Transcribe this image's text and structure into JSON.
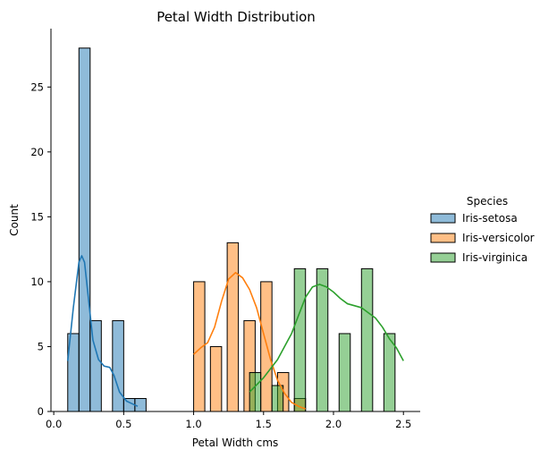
{
  "chart_data": {
    "type": "histogram",
    "title": "Petal Width Distribution",
    "xlabel": "Petal Width cms",
    "ylabel": "Count",
    "xlim": [
      -0.02,
      2.62
    ],
    "ylim": [
      0,
      29.5
    ],
    "xticks": [
      0.0,
      0.5,
      1.0,
      1.5,
      2.0,
      2.5
    ],
    "xtick_labels": [
      "0.0",
      "0.5",
      "1.0",
      "1.5",
      "2.0",
      "2.5"
    ],
    "yticks": [
      0,
      5,
      10,
      15,
      20,
      25
    ],
    "ytick_labels": [
      "0",
      "5",
      "10",
      "15",
      "20",
      "25"
    ],
    "bin_width": 0.08,
    "grid": false,
    "legend_title": "Species",
    "legend_position": "right",
    "series": [
      {
        "name": "Iris-setosa",
        "color": "#1f77b4",
        "bins": [
          {
            "x0": 0.1,
            "count": 6
          },
          {
            "x0": 0.18,
            "count": 28
          },
          {
            "x0": 0.26,
            "count": 7
          },
          {
            "x0": 0.42,
            "count": 7
          },
          {
            "x0": 0.5,
            "count": 1
          },
          {
            "x0": 0.58,
            "count": 1
          }
        ],
        "kde": [
          [
            0.1,
            3.9
          ],
          [
            0.14,
            8.0
          ],
          [
            0.18,
            11.5
          ],
          [
            0.2,
            12.0
          ],
          [
            0.22,
            11.5
          ],
          [
            0.25,
            8.5
          ],
          [
            0.28,
            5.5
          ],
          [
            0.32,
            4.0
          ],
          [
            0.36,
            3.5
          ],
          [
            0.4,
            3.4
          ],
          [
            0.43,
            2.8
          ],
          [
            0.47,
            1.5
          ],
          [
            0.52,
            0.8
          ],
          [
            0.56,
            0.6
          ],
          [
            0.6,
            0.4
          ]
        ]
      },
      {
        "name": "Iris-versicolor",
        "color": "#ff7f0e",
        "bins": [
          {
            "x0": 1.0,
            "count": 10
          },
          {
            "x0": 1.12,
            "count": 5
          },
          {
            "x0": 1.24,
            "count": 13
          },
          {
            "x0": 1.36,
            "count": 7
          },
          {
            "x0": 1.48,
            "count": 10
          },
          {
            "x0": 1.6,
            "count": 3
          },
          {
            "x0": 1.72,
            "count": 1
          }
        ],
        "kde": [
          [
            1.0,
            4.4
          ],
          [
            1.05,
            4.9
          ],
          [
            1.1,
            5.3
          ],
          [
            1.15,
            6.5
          ],
          [
            1.2,
            8.5
          ],
          [
            1.25,
            10.2
          ],
          [
            1.3,
            10.7
          ],
          [
            1.35,
            10.3
          ],
          [
            1.4,
            9.4
          ],
          [
            1.45,
            8.0
          ],
          [
            1.5,
            6.0
          ],
          [
            1.55,
            4.0
          ],
          [
            1.6,
            2.4
          ],
          [
            1.65,
            1.4
          ],
          [
            1.7,
            0.7
          ],
          [
            1.75,
            0.4
          ],
          [
            1.8,
            0.2
          ]
        ]
      },
      {
        "name": "Iris-virginica",
        "color": "#2ca02c",
        "bins": [
          {
            "x0": 1.4,
            "count": 3
          },
          {
            "x0": 1.56,
            "count": 2
          },
          {
            "x0": 1.72,
            "count": 11
          },
          {
            "x0": 1.88,
            "count": 11
          },
          {
            "x0": 2.04,
            "count": 6
          },
          {
            "x0": 2.2,
            "count": 11
          },
          {
            "x0": 2.36,
            "count": 6
          }
        ],
        "kde": [
          [
            1.4,
            1.5
          ],
          [
            1.5,
            2.6
          ],
          [
            1.6,
            4.0
          ],
          [
            1.7,
            6.0
          ],
          [
            1.8,
            8.8
          ],
          [
            1.85,
            9.6
          ],
          [
            1.9,
            9.8
          ],
          [
            1.95,
            9.6
          ],
          [
            2.0,
            9.2
          ],
          [
            2.05,
            8.7
          ],
          [
            2.1,
            8.3
          ],
          [
            2.2,
            8.0
          ],
          [
            2.25,
            7.6
          ],
          [
            2.3,
            7.2
          ],
          [
            2.35,
            6.5
          ],
          [
            2.4,
            5.6
          ],
          [
            2.45,
            4.9
          ],
          [
            2.5,
            3.9
          ]
        ]
      }
    ]
  }
}
